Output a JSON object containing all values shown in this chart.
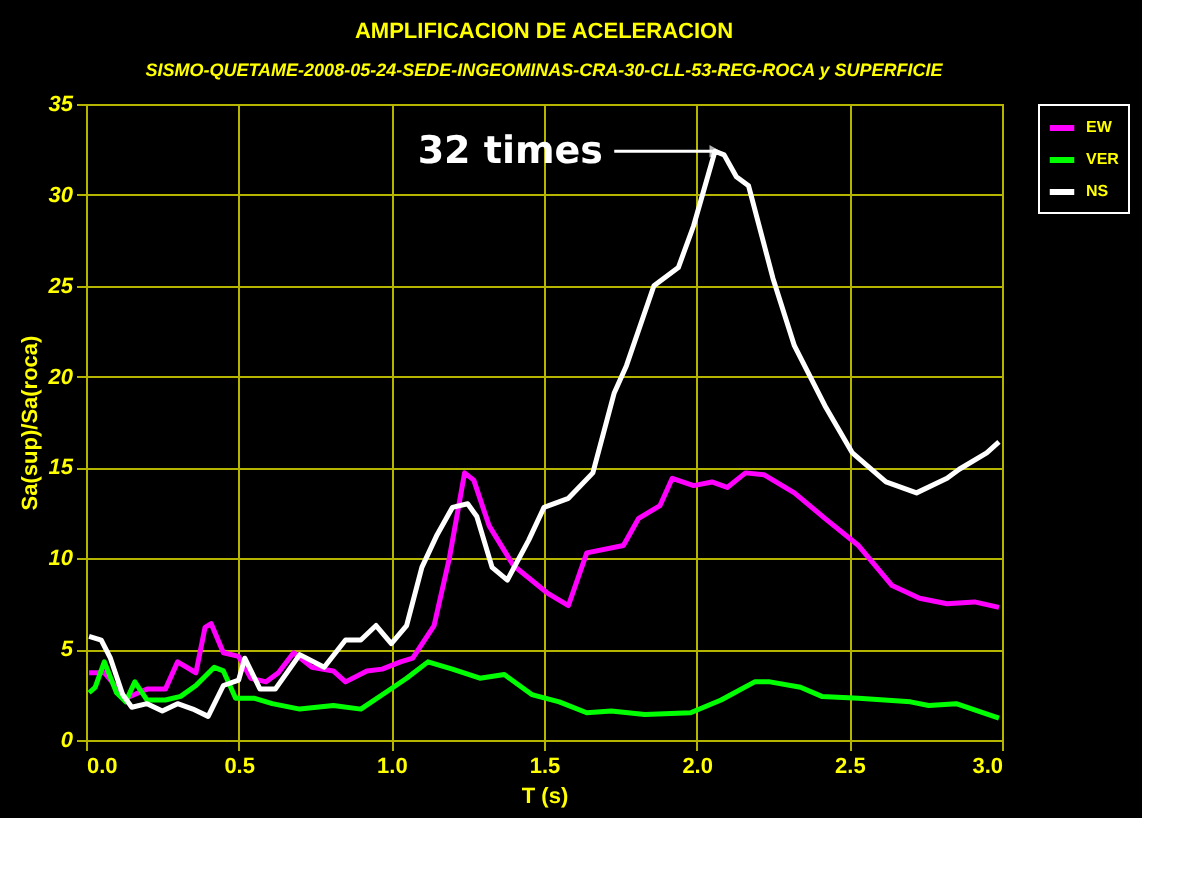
{
  "chart_data": {
    "type": "line",
    "title": "AMPLIFICACION DE ACELERACION",
    "subtitle": "SISMO-QUETAME-2008-05-24-SEDE-INGEOMINAS-CRA-30-CLL-53-REG-ROCA y SUPERFICIE",
    "xlabel": "T (s)",
    "ylabel": "Sa(sup)/Sa(roca)",
    "xlim": [
      0,
      3
    ],
    "xticks": [
      {
        "value": 0,
        "label": "0.0"
      },
      0.5,
      {
        "value": 1,
        "label": "1.0"
      },
      1.5,
      {
        "value": 2,
        "label": "2.0"
      },
      2.5,
      {
        "value": 3,
        "label": "3.0"
      }
    ],
    "ylim": [
      0,
      35
    ],
    "yticks": [
      0,
      5,
      10,
      15,
      20,
      25,
      30,
      35
    ],
    "grid": true,
    "legend": "right",
    "line_style": "solid",
    "annotations": [
      {
        "text": "32 times",
        "x": 2.06,
        "y": 32.4
      }
    ],
    "series": [
      {
        "name": "EW",
        "color": "#ff00ff",
        "x": [
          0.01,
          0.06,
          0.13,
          0.2,
          0.26,
          0.3,
          0.36,
          0.39,
          0.41,
          0.45,
          0.5,
          0.54,
          0.59,
          0.63,
          0.68,
          0.74,
          0.81,
          0.85,
          0.92,
          0.97,
          1.03,
          1.07,
          1.14,
          1.19,
          1.24,
          1.27,
          1.32,
          1.4,
          1.51,
          1.58,
          1.64,
          1.76,
          1.81,
          1.88,
          1.92,
          1.99,
          2.05,
          2.1,
          2.16,
          2.22,
          2.32,
          2.42,
          2.53,
          2.64,
          2.73,
          2.82,
          2.91,
          2.99
        ],
        "values": [
          3.7,
          3.7,
          2.3,
          2.8,
          2.8,
          4.3,
          3.7,
          6.2,
          6.4,
          4.8,
          4.6,
          3.4,
          3.2,
          3.7,
          4.8,
          4.0,
          3.8,
          3.2,
          3.8,
          3.9,
          4.3,
          4.5,
          6.3,
          10.0,
          14.7,
          14.3,
          11.8,
          9.6,
          8.1,
          7.4,
          10.3,
          10.7,
          12.2,
          12.9,
          14.4,
          14.0,
          14.2,
          13.9,
          14.7,
          14.6,
          13.6,
          12.2,
          10.7,
          8.5,
          7.8,
          7.5,
          7.6,
          7.3
        ]
      },
      {
        "name": "VER",
        "color": "#00ff00",
        "x": [
          0.01,
          0.03,
          0.06,
          0.1,
          0.13,
          0.16,
          0.2,
          0.26,
          0.31,
          0.36,
          0.42,
          0.45,
          0.49,
          0.55,
          0.61,
          0.7,
          0.81,
          0.9,
          0.98,
          1.05,
          1.12,
          1.2,
          1.29,
          1.37,
          1.46,
          1.55,
          1.64,
          1.72,
          1.83,
          1.98,
          2.08,
          2.19,
          2.24,
          2.34,
          2.41,
          2.53,
          2.7,
          2.76,
          2.85,
          2.99
        ],
        "values": [
          2.6,
          2.9,
          4.3,
          2.6,
          2.1,
          3.2,
          2.2,
          2.2,
          2.4,
          3.0,
          4.0,
          3.8,
          2.3,
          2.3,
          2.0,
          1.7,
          1.9,
          1.7,
          2.6,
          3.4,
          4.3,
          3.9,
          3.4,
          3.6,
          2.5,
          2.1,
          1.5,
          1.6,
          1.4,
          1.5,
          2.2,
          3.2,
          3.2,
          2.9,
          2.4,
          2.3,
          2.1,
          1.9,
          2.0,
          1.2
        ]
      },
      {
        "name": "NS",
        "color": "#ffffff",
        "x": [
          0.01,
          0.05,
          0.08,
          0.12,
          0.15,
          0.2,
          0.25,
          0.3,
          0.35,
          0.4,
          0.45,
          0.5,
          0.52,
          0.57,
          0.62,
          0.7,
          0.78,
          0.85,
          0.9,
          0.95,
          1.0,
          1.05,
          1.1,
          1.15,
          1.2,
          1.25,
          1.28,
          1.33,
          1.38,
          1.45,
          1.5,
          1.58,
          1.66,
          1.73,
          1.77,
          1.86,
          1.94,
          1.99,
          2.06,
          2.09,
          2.13,
          2.17,
          2.25,
          2.32,
          2.42,
          2.51,
          2.62,
          2.72,
          2.82,
          2.86,
          2.95,
          2.99
        ],
        "values": [
          5.7,
          5.5,
          4.5,
          2.5,
          1.8,
          2.0,
          1.6,
          2.0,
          1.7,
          1.3,
          3.0,
          3.3,
          4.5,
          2.8,
          2.8,
          4.7,
          4.0,
          5.5,
          5.5,
          6.3,
          5.3,
          6.3,
          9.5,
          11.3,
          12.8,
          13.0,
          12.3,
          9.5,
          8.8,
          11.0,
          12.8,
          13.3,
          14.7,
          19.1,
          20.6,
          25.0,
          26.0,
          28.3,
          32.4,
          32.2,
          31.0,
          30.5,
          25.4,
          21.7,
          18.4,
          15.8,
          14.2,
          13.6,
          14.4,
          14.9,
          15.8,
          16.4
        ]
      }
    ]
  }
}
